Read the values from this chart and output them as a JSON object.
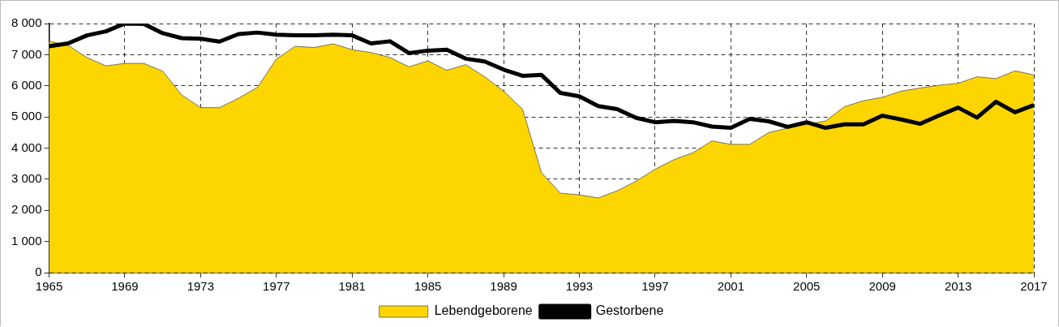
{
  "chart_data": {
    "type": "area",
    "x": [
      1965,
      1966,
      1967,
      1968,
      1969,
      1970,
      1971,
      1972,
      1973,
      1974,
      1975,
      1976,
      1977,
      1978,
      1979,
      1980,
      1981,
      1982,
      1983,
      1984,
      1985,
      1986,
      1987,
      1988,
      1989,
      1990,
      1991,
      1992,
      1993,
      1994,
      1995,
      1996,
      1997,
      1998,
      1999,
      2000,
      2001,
      2002,
      2003,
      2004,
      2005,
      2006,
      2007,
      2008,
      2009,
      2010,
      2011,
      2012,
      2013,
      2014,
      2015,
      2016,
      2017
    ],
    "series": [
      {
        "name": "Lebendgeborene",
        "color": "#fdd500",
        "values": [
          7430,
          7300,
          6910,
          6640,
          6720,
          6720,
          6470,
          5710,
          5300,
          5300,
          5600,
          5950,
          6860,
          7270,
          7230,
          7350,
          7160,
          7070,
          6910,
          6610,
          6800,
          6500,
          6680,
          6290,
          5830,
          5250,
          3210,
          2550,
          2500,
          2400,
          2630,
          2940,
          3320,
          3630,
          3850,
          4230,
          4120,
          4120,
          4500,
          4640,
          4760,
          4870,
          5330,
          5520,
          5630,
          5830,
          5930,
          6020,
          6080,
          6290,
          6230,
          6480,
          6350
        ]
      },
      {
        "name": "Gestorbene",
        "type": "line",
        "color": "#000000",
        "values": [
          7270,
          7360,
          7620,
          7750,
          8000,
          7990,
          7690,
          7530,
          7510,
          7420,
          7660,
          7710,
          7640,
          7620,
          7620,
          7640,
          7620,
          7360,
          7430,
          7050,
          7130,
          7160,
          6870,
          6780,
          6520,
          6320,
          6350,
          5770,
          5660,
          5350,
          5250,
          4970,
          4830,
          4870,
          4830,
          4690,
          4650,
          4940,
          4860,
          4680,
          4830,
          4650,
          4760,
          4760,
          5040,
          4920,
          4780,
          5050,
          5300,
          4980,
          5490,
          5150,
          5380
        ]
      }
    ],
    "xlim": [
      1965,
      2017
    ],
    "xticks": [
      1965,
      1969,
      1973,
      1977,
      1981,
      1985,
      1989,
      1993,
      1997,
      2001,
      2005,
      2009,
      2013,
      2017
    ],
    "ylim": [
      0,
      8000
    ],
    "yticks": [
      0,
      {
        "value": 1000,
        "label": "1 000"
      },
      {
        "value": 2000,
        "label": "2 000"
      },
      {
        "value": 3000,
        "label": "3 000"
      },
      {
        "value": 4000,
        "label": "4 000"
      },
      {
        "value": 5000,
        "label": "5 000"
      },
      {
        "value": 6000,
        "label": "6 000"
      },
      {
        "value": 7000,
        "label": "7 000"
      },
      {
        "value": 8000,
        "label": "8 000"
      }
    ],
    "grid": true,
    "legend": "bottom"
  }
}
